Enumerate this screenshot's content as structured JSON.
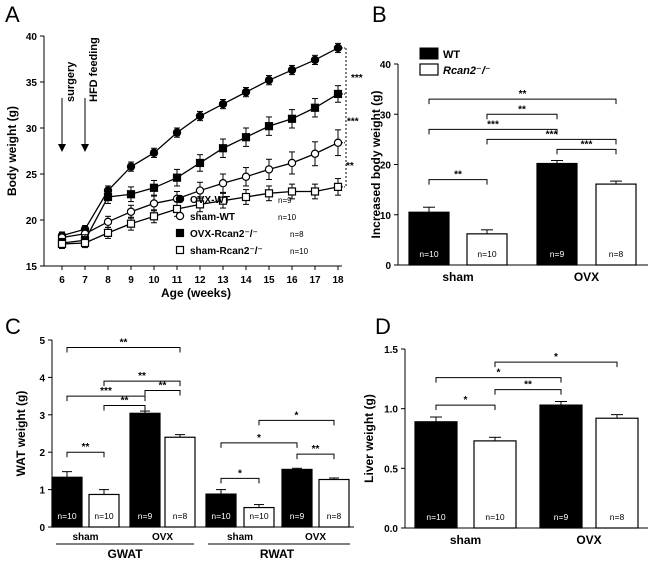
{
  "chart_data": [
    {
      "panel": "A",
      "type": "line",
      "xlabel": "Age (weeks)",
      "ylabel": "Body weight (g)",
      "x": [
        6,
        7,
        8,
        9,
        10,
        11,
        12,
        13,
        14,
        15,
        16,
        17,
        18
      ],
      "xlim": [
        6,
        18
      ],
      "ylim": [
        15,
        40
      ],
      "yticks": [
        15,
        20,
        25,
        30,
        35,
        40
      ],
      "series": [
        {
          "name": "OVX-WT",
          "n": "n=9",
          "marker": "filled-circle",
          "values": [
            18.3,
            19.0,
            23.2,
            25.8,
            27.3,
            29.5,
            31.3,
            32.6,
            33.9,
            35.2,
            36.3,
            37.4,
            38.7
          ],
          "errors": [
            0.4,
            0.4,
            0.5,
            0.5,
            0.5,
            0.5,
            0.5,
            0.5,
            0.5,
            0.5,
            0.5,
            0.5,
            0.5
          ]
        },
        {
          "name": "sham-WT",
          "n": "n=10",
          "marker": "open-circle",
          "values": [
            18.1,
            18.5,
            19.8,
            20.9,
            21.8,
            22.3,
            23.2,
            24.0,
            24.7,
            25.5,
            26.2,
            27.2,
            28.4
          ],
          "errors": [
            0.5,
            0.5,
            0.6,
            0.7,
            0.8,
            0.8,
            0.9,
            1.0,
            1.0,
            1.1,
            1.2,
            1.3,
            1.4
          ]
        },
        {
          "name": "OVX-Rcan2⁻/⁻",
          "n": "n=8",
          "marker": "filled-square",
          "values": [
            17.5,
            17.8,
            22.5,
            22.8,
            23.5,
            24.6,
            26.2,
            27.8,
            29.0,
            30.2,
            31.0,
            32.2,
            33.7
          ],
          "errors": [
            0.5,
            0.6,
            0.7,
            0.8,
            0.8,
            0.9,
            0.9,
            1.0,
            1.0,
            1.0,
            1.0,
            1.0,
            0.9
          ]
        },
        {
          "name": "sham-Rcan2⁻/⁻",
          "n": "n=10",
          "marker": "open-square",
          "values": [
            17.4,
            17.5,
            18.6,
            19.6,
            20.4,
            21.2,
            21.7,
            22.1,
            22.5,
            22.9,
            23.1,
            23.1,
            23.6
          ],
          "errors": [
            0.5,
            0.5,
            0.6,
            0.7,
            0.7,
            0.8,
            0.8,
            0.8,
            0.8,
            0.8,
            0.8,
            0.8,
            0.9
          ]
        }
      ],
      "legend": [
        "OVX-WT",
        "sham-WT",
        "OVX-Rcan2⁻/⁻",
        "sham-Rcan2⁻/⁻"
      ],
      "annotations": [
        "surgery",
        "HFD feeding"
      ],
      "significance": [
        "***",
        "***",
        "**"
      ]
    },
    {
      "panel": "B",
      "type": "bar",
      "ylabel": "Increased body weight (g)",
      "groups": [
        "sham",
        "OVX"
      ],
      "series": [
        {
          "name": "WT",
          "values": [
            10.5,
            20.2
          ],
          "errors": [
            1.0,
            0.6
          ],
          "n": [
            "n=10",
            "n=9"
          ]
        },
        {
          "name": "Rcan2⁻/⁻",
          "values": [
            6.2,
            16.1
          ],
          "errors": [
            0.8,
            0.6
          ],
          "n": [
            "n=10",
            "n=8"
          ]
        }
      ],
      "ylim": [
        0,
        40
      ],
      "yticks": [
        0,
        10,
        20,
        30,
        40
      ],
      "significance": [
        "**",
        "***",
        "***",
        "***",
        "**",
        "**"
      ]
    },
    {
      "panel": "C",
      "type": "bar",
      "ylabel": "WAT weight (g)",
      "groups": [
        "GWAT",
        "RWAT"
      ],
      "subgroups": [
        "sham",
        "OVX"
      ],
      "bars": [
        {
          "depot": "GWAT",
          "label": "sham WT",
          "value": 1.33,
          "error": 0.15,
          "n": "n=10",
          "fill": "black"
        },
        {
          "depot": "GWAT",
          "label": "sham Rcan2⁻/⁻",
          "value": 0.87,
          "error": 0.13,
          "n": "n=10",
          "fill": "white"
        },
        {
          "depot": "GWAT",
          "label": "OVX WT",
          "value": 3.04,
          "error": 0.06,
          "n": "n=9",
          "fill": "black"
        },
        {
          "depot": "GWAT",
          "label": "OVX Rcan2⁻/⁻",
          "value": 2.4,
          "error": 0.07,
          "n": "n=8",
          "fill": "white"
        },
        {
          "depot": "RWAT",
          "label": "sham WT",
          "value": 0.88,
          "error": 0.12,
          "n": "n=10",
          "fill": "black"
        },
        {
          "depot": "RWAT",
          "label": "sham Rcan2⁻/⁻",
          "value": 0.52,
          "error": 0.08,
          "n": "n=10",
          "fill": "white"
        },
        {
          "depot": "RWAT",
          "label": "OVX WT",
          "value": 1.54,
          "error": 0.03,
          "n": "n=9",
          "fill": "black"
        },
        {
          "depot": "RWAT",
          "label": "OVX Rcan2⁻/⁻",
          "value": 1.27,
          "error": 0.04,
          "n": "n=8",
          "fill": "white"
        }
      ],
      "ylim": [
        0,
        5
      ],
      "yticks": [
        0,
        1,
        2,
        3,
        4,
        5
      ],
      "significance": [
        "**",
        "**",
        "**",
        "***",
        "**",
        "**",
        "*",
        "**",
        "*",
        "*"
      ]
    },
    {
      "panel": "D",
      "type": "bar",
      "ylabel": "Liver weight (g)",
      "groups": [
        "sham",
        "OVX"
      ],
      "series": [
        {
          "name": "WT",
          "values": [
            0.89,
            1.03
          ],
          "errors": [
            0.04,
            0.03
          ],
          "n": [
            "n=10",
            "n=9"
          ]
        },
        {
          "name": "Rcan2⁻/⁻",
          "values": [
            0.73,
            0.92
          ],
          "errors": [
            0.03,
            0.03
          ],
          "n": [
            "n=10",
            "n=8"
          ]
        }
      ],
      "ylim": [
        0,
        1.5
      ],
      "yticks": [
        "0.0",
        "0.5",
        "1.0",
        "1.5"
      ],
      "significance": [
        "*",
        "*",
        "**",
        "*"
      ]
    }
  ]
}
